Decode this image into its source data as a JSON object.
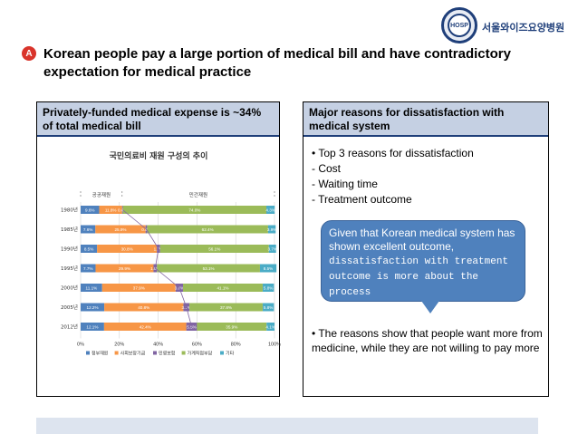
{
  "logo": {
    "text": "HOSP",
    "org_name": "서울와이즈요양병원"
  },
  "badge": "A",
  "title": "Korean people pay a large portion of medical bill and have contradictory expectation for medical practice",
  "left_panel": {
    "header": "Privately-funded medical expense is ~34% of total medical bill"
  },
  "right_panel": {
    "header": "Major reasons for dissatisfaction with medical system",
    "bullets": [
      "• Top 3 reasons for dissatisfaction",
      "- Cost",
      "- Waiting time",
      "- Treatment outcome"
    ],
    "callout_line1": "Given that Korean medical system has shown excellent outcome,",
    "callout_line2": "dissatisfaction with treatment outcome is more about the process",
    "bottom_bullet": "• The reasons show that people want more from medicine, while they are not willing to pay more"
  },
  "chart_data": {
    "type": "bar",
    "stacked": true,
    "orientation": "horizontal",
    "title": "국민의료비 재원 구성의 추이",
    "group_labels": [
      "공공재원",
      "민간재원"
    ],
    "categories": [
      "1980년",
      "1985년",
      "1990년",
      "1995년",
      "2000년",
      "2005년",
      "2012년"
    ],
    "xlim": [
      0,
      100
    ],
    "xticks": [
      "0%",
      "20%",
      "40%",
      "60%",
      "80%",
      "100%"
    ],
    "series": [
      {
        "name": "정부재원",
        "color": "#4f81bd",
        "values": [
          9.6,
          7.6,
          8.5,
          7.7,
          11.1,
          12.2,
          12.1
        ],
        "labels": [
          "9.6%",
          "7.6%",
          "8.5%",
          "7.7%",
          "11.1%",
          "12.2%",
          "12.1%"
        ]
      },
      {
        "name": "사회보장기금",
        "color": "#f79646",
        "values": [
          11.8,
          25.9,
          30.8,
          29.9,
          37.9,
          40.8,
          42.4
        ],
        "labels": [
          "11.8%",
          "25.9%",
          "30.8%",
          "29.9%",
          "37.9%",
          "40.8%",
          "42.4%"
        ]
      },
      {
        "name": "민영보험",
        "color": "#8064a2",
        "values": [
          0.4,
          0.8,
          1.7,
          1.8,
          3.8,
          3.1,
          5.5
        ],
        "labels": [
          "0.4%",
          "0.8%",
          "1.7%",
          "1.8%",
          "3.8%",
          "3.1%",
          "5.5%"
        ]
      },
      {
        "name": "가계직접부담",
        "color": "#9bbb59",
        "values": [
          74.0,
          62.4,
          56.1,
          53.1,
          41.1,
          37.8,
          35.9
        ],
        "labels": [
          "74.0%",
          "62.4%",
          "56.1%",
          "53.1%",
          "41.1%",
          "37.8%",
          "35.9%"
        ]
      },
      {
        "name": "기타",
        "color": "#4bacc6",
        "values": [
          4.3,
          3.9,
          3.7,
          8.5,
          5.8,
          5.8,
          4.1
        ],
        "labels": [
          "4.3%",
          "3.9%",
          "3.7%",
          "8.5%",
          "5.8%",
          "5.8%",
          "4.1%"
        ]
      }
    ]
  }
}
